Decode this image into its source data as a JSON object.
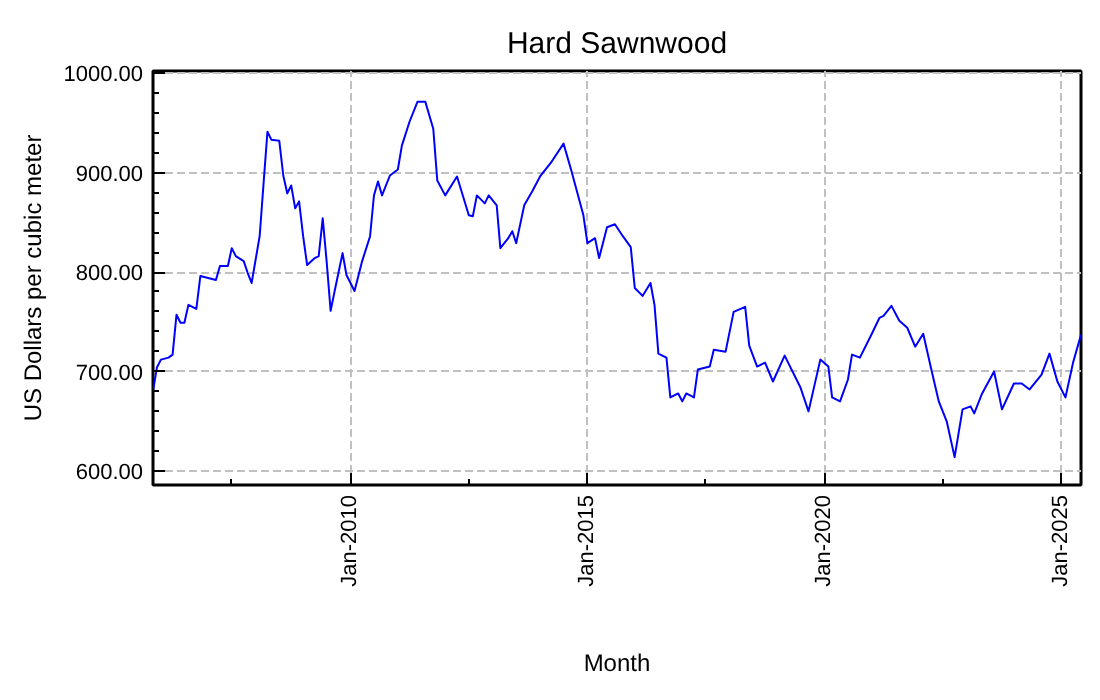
{
  "chart_data": {
    "type": "line",
    "title": "Hard Sawnwood",
    "xlabel": "Month",
    "ylabel": "US Dollars per cubic meter",
    "x": [
      "2005-11",
      "2005-12",
      "2006-01",
      "2006-03",
      "2006-04",
      "2006-05",
      "2006-06",
      "2006-07",
      "2006-08",
      "2006-10",
      "2006-11",
      "2007-03",
      "2007-04",
      "2007-06",
      "2007-07",
      "2007-08",
      "2007-10",
      "2007-11",
      "2007-12",
      "2008-02",
      "2008-03",
      "2008-04",
      "2008-05",
      "2008-07",
      "2008-08",
      "2008-09",
      "2008-10",
      "2008-11",
      "2008-12",
      "2009-01",
      "2009-02",
      "2009-04",
      "2009-05",
      "2009-06",
      "2009-07",
      "2009-08",
      "2009-09",
      "2009-11",
      "2009-12",
      "2010-02",
      "2010-04",
      "2010-06",
      "2010-07",
      "2010-08",
      "2010-09",
      "2010-11",
      "2011-01",
      "2011-02",
      "2011-04",
      "2011-06",
      "2011-08",
      "2011-10",
      "2011-11",
      "2012-01",
      "2012-04",
      "2012-07",
      "2012-08",
      "2012-09",
      "2012-11",
      "2012-12",
      "2013-02",
      "2013-03",
      "2013-05",
      "2013-06",
      "2013-07",
      "2013-09",
      "2013-11",
      "2014-01",
      "2014-04",
      "2014-07",
      "2014-09",
      "2014-12",
      "2015-01",
      "2015-03",
      "2015-04",
      "2015-06",
      "2015-08",
      "2015-10",
      "2015-12",
      "2016-01",
      "2016-03",
      "2016-05",
      "2016-06",
      "2016-07",
      "2016-09",
      "2016-10",
      "2016-12",
      "2017-01",
      "2017-02",
      "2017-04",
      "2017-05",
      "2017-08",
      "2017-09",
      "2017-12",
      "2018-02",
      "2018-05",
      "2018-06",
      "2018-08",
      "2018-10",
      "2018-12",
      "2019-03",
      "2019-07",
      "2019-09",
      "2019-12",
      "2020-02",
      "2020-03",
      "2020-05",
      "2020-07",
      "2020-08",
      "2020-10",
      "2021-01",
      "2021-03",
      "2021-04",
      "2021-06",
      "2021-08",
      "2021-10",
      "2021-12",
      "2022-02",
      "2022-04",
      "2022-06",
      "2022-08",
      "2022-10",
      "2022-12",
      "2023-02",
      "2023-03",
      "2023-05",
      "2023-08",
      "2023-10",
      "2024-01",
      "2024-03",
      "2024-05",
      "2024-08",
      "2024-10",
      "2024-12",
      "2025-02",
      "2025-04",
      "2025-06"
    ],
    "series": [
      {
        "color": "#0000ff",
        "values": [
          680,
          704,
          712,
          714,
          717,
          757,
          749,
          749,
          767,
          763,
          796,
          792,
          806,
          806,
          824,
          816,
          811,
          799,
          789,
          836,
          887,
          941,
          933,
          932,
          897,
          879,
          887,
          864,
          871,
          836,
          807,
          814,
          816,
          854,
          811,
          761,
          781,
          819,
          797,
          781,
          811,
          836,
          877,
          891,
          877,
          897,
          903,
          927,
          951,
          971,
          971,
          944,
          892,
          877,
          896,
          857,
          856,
          877,
          869,
          877,
          867,
          824,
          834,
          841,
          829,
          867,
          881,
          896,
          911,
          929,
          901,
          857,
          829,
          834,
          814,
          845,
          848,
          836,
          825,
          784,
          776,
          789,
          767,
          718,
          714,
          674,
          678,
          670,
          678,
          674,
          702,
          705,
          722,
          720,
          760,
          765,
          726,
          705,
          709,
          690,
          716,
          684,
          660,
          712,
          705,
          674,
          670,
          692,
          717,
          714,
          738,
          754,
          756,
          766,
          751,
          744,
          725,
          738,
          704,
          670,
          650,
          614,
          662,
          665,
          658,
          678,
          700,
          662,
          688,
          688,
          682,
          697,
          718,
          690,
          674,
          709,
          737
        ]
      }
    ],
    "xlim": [
      "2005-11",
      "2025-06"
    ],
    "xticks": [
      {
        "value": "2007-07",
        "label": null
      },
      {
        "value": "2010-01",
        "label": "Jan-2010"
      },
      {
        "value": "2012-07",
        "label": null
      },
      {
        "value": "2015-01",
        "label": "Jan-2015"
      },
      {
        "value": "2017-07",
        "label": null
      },
      {
        "value": "2020-01",
        "label": "Jan-2020"
      },
      {
        "value": "2022-07",
        "label": null
      },
      {
        "value": "2025-01",
        "label": "Jan-2025"
      }
    ],
    "ylim": [
      586,
      1002
    ],
    "yticks": [
      {
        "value": 600,
        "label": "600.00"
      },
      {
        "value": 620,
        "label": null
      },
      {
        "value": 640,
        "label": null
      },
      {
        "value": 660,
        "label": null
      },
      {
        "value": 680,
        "label": null
      },
      {
        "value": 700,
        "label": "700.00"
      },
      {
        "value": 720,
        "label": null
      },
      {
        "value": 740,
        "label": null
      },
      {
        "value": 760,
        "label": null
      },
      {
        "value": 780,
        "label": null
      },
      {
        "value": 800,
        "label": "800.00"
      },
      {
        "value": 820,
        "label": null
      },
      {
        "value": 840,
        "label": null
      },
      {
        "value": 860,
        "label": null
      },
      {
        "value": 880,
        "label": null
      },
      {
        "value": 900,
        "label": "900.00"
      },
      {
        "value": 920,
        "label": null
      },
      {
        "value": 940,
        "label": null
      },
      {
        "value": 960,
        "label": null
      },
      {
        "value": 980,
        "label": null
      },
      {
        "value": 1000,
        "label": "1000.00"
      }
    ],
    "grid": true,
    "marker": "none",
    "line_style": "solid"
  }
}
